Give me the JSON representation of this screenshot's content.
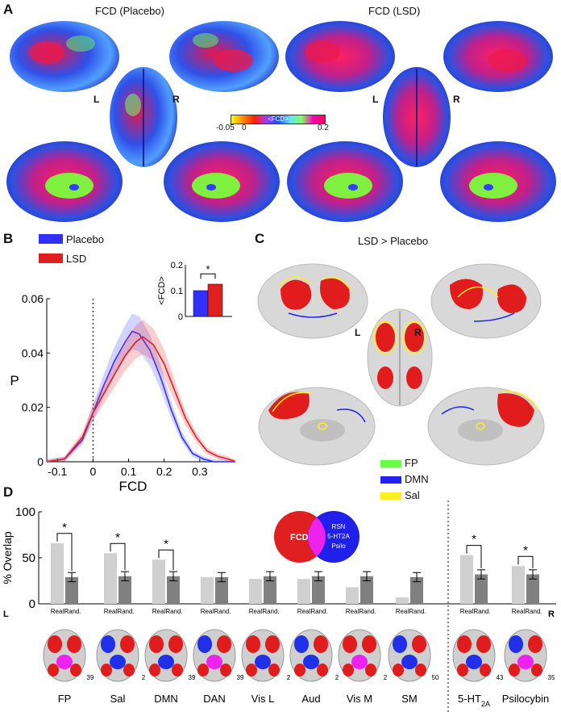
{
  "panels": {
    "A": {
      "letter": "A",
      "title_placebo": "FCD (Placebo)",
      "title_lsd": "FCD (LSD)",
      "hemi_L": "L",
      "hemi_R": "R",
      "colorbar": {
        "label": "<FCD>",
        "min_label": "-0.05",
        "mid_label": "0",
        "max_label": "0.2",
        "colors": [
          "#ffff00",
          "#ff8a00",
          "#ff2000",
          "#9a3cff",
          "#2050ff",
          "#60e0ff",
          "#80ff60",
          "#ff00c0",
          "#ff0050"
        ]
      }
    },
    "B": {
      "letter": "B",
      "legend": [
        {
          "label": "Placebo",
          "color": "#3030ff"
        },
        {
          "label": "LSD",
          "color": "#e02020"
        }
      ],
      "xlabel": "FCD",
      "ylabel": "P",
      "xticks": [
        "-0.1",
        "0",
        "0.1",
        "0.2",
        "0.3"
      ],
      "yticks": [
        "0",
        "0.02",
        "0.04",
        "0.06"
      ],
      "inset": {
        "ylabel": "<FCD>",
        "yticks": [
          "0",
          "0.1",
          "0.2"
        ],
        "star": "*"
      }
    },
    "C": {
      "letter": "C",
      "title": "LSD > Placebo",
      "hemi_L": "L",
      "hemi_R": "R",
      "legend": [
        {
          "label": "FP",
          "color": "#66ff44"
        },
        {
          "label": "DMN",
          "color": "#2222ee"
        },
        {
          "label": "Sal",
          "color": "#ffee22"
        }
      ]
    },
    "D": {
      "letter": "D",
      "ylabel": "% Overlap",
      "yticks": [
        "0",
        "50",
        "100"
      ],
      "real_label": "Real",
      "rand_label": "Rand.",
      "side_L": "L",
      "side_R": "R",
      "star": "*",
      "venn": {
        "left": "FCD",
        "right_lines": [
          "RSN",
          "5-HT2A",
          "Psilo"
        ]
      },
      "axial_numbers": [
        "39",
        "2",
        "39",
        "39",
        "2",
        "2",
        "2",
        "50",
        "43",
        "35"
      ],
      "group_labels": [
        "FP",
        "Sal",
        "DMN",
        "DAN",
        "Vis L",
        "Aud",
        "Vis M",
        "SM",
        "5-HT",
        "Psilocybin"
      ],
      "ht2a_sub": "2A"
    }
  },
  "chart_data": [
    {
      "type": "line",
      "title": "",
      "xlabel": "FCD",
      "ylabel": "P",
      "xlim": [
        -0.13,
        0.4
      ],
      "ylim": [
        0,
        0.06
      ],
      "series": [
        {
          "name": "Placebo",
          "x": [
            -0.13,
            -0.08,
            -0.03,
            0.0,
            0.03,
            0.06,
            0.09,
            0.11,
            0.13,
            0.16,
            0.19,
            0.22,
            0.25,
            0.28,
            0.31,
            0.34,
            0.37,
            0.4
          ],
          "y": [
            0.0,
            0.001,
            0.008,
            0.018,
            0.028,
            0.037,
            0.044,
            0.048,
            0.047,
            0.041,
            0.031,
            0.019,
            0.009,
            0.003,
            0.001,
            0.0,
            0.0,
            0.0
          ]
        },
        {
          "name": "LSD",
          "x": [
            -0.13,
            -0.08,
            -0.03,
            0.0,
            0.03,
            0.06,
            0.09,
            0.12,
            0.14,
            0.17,
            0.2,
            0.23,
            0.26,
            0.29,
            0.32,
            0.35,
            0.38,
            0.4
          ],
          "y": [
            0.0,
            0.001,
            0.009,
            0.018,
            0.025,
            0.032,
            0.039,
            0.044,
            0.046,
            0.043,
            0.036,
            0.026,
            0.016,
            0.009,
            0.004,
            0.002,
            0.001,
            0.0
          ]
        }
      ]
    },
    {
      "type": "bar",
      "title": "",
      "categories": [
        "Placebo",
        "LSD"
      ],
      "values": [
        0.1,
        0.125
      ],
      "ylabel": "<FCD>",
      "ylim": [
        0,
        0.2
      ],
      "significance": "*"
    },
    {
      "type": "bar",
      "title": "",
      "ylabel": "% Overlap",
      "ylim": [
        0,
        100
      ],
      "categories": [
        "FP",
        "Sal",
        "DMN",
        "DAN",
        "Vis L",
        "Aud",
        "Vis M",
        "SM",
        "5-HT2A",
        "Psilocybin"
      ],
      "series": [
        {
          "name": "Real",
          "values": [
            66,
            55,
            48,
            29,
            27,
            27,
            18,
            7,
            53,
            41
          ]
        },
        {
          "name": "Rand.",
          "values": [
            29,
            30,
            30,
            29,
            30,
            30,
            30,
            29,
            32,
            32
          ]
        }
      ],
      "significant": [
        true,
        true,
        true,
        false,
        false,
        false,
        false,
        false,
        true,
        true
      ]
    }
  ]
}
